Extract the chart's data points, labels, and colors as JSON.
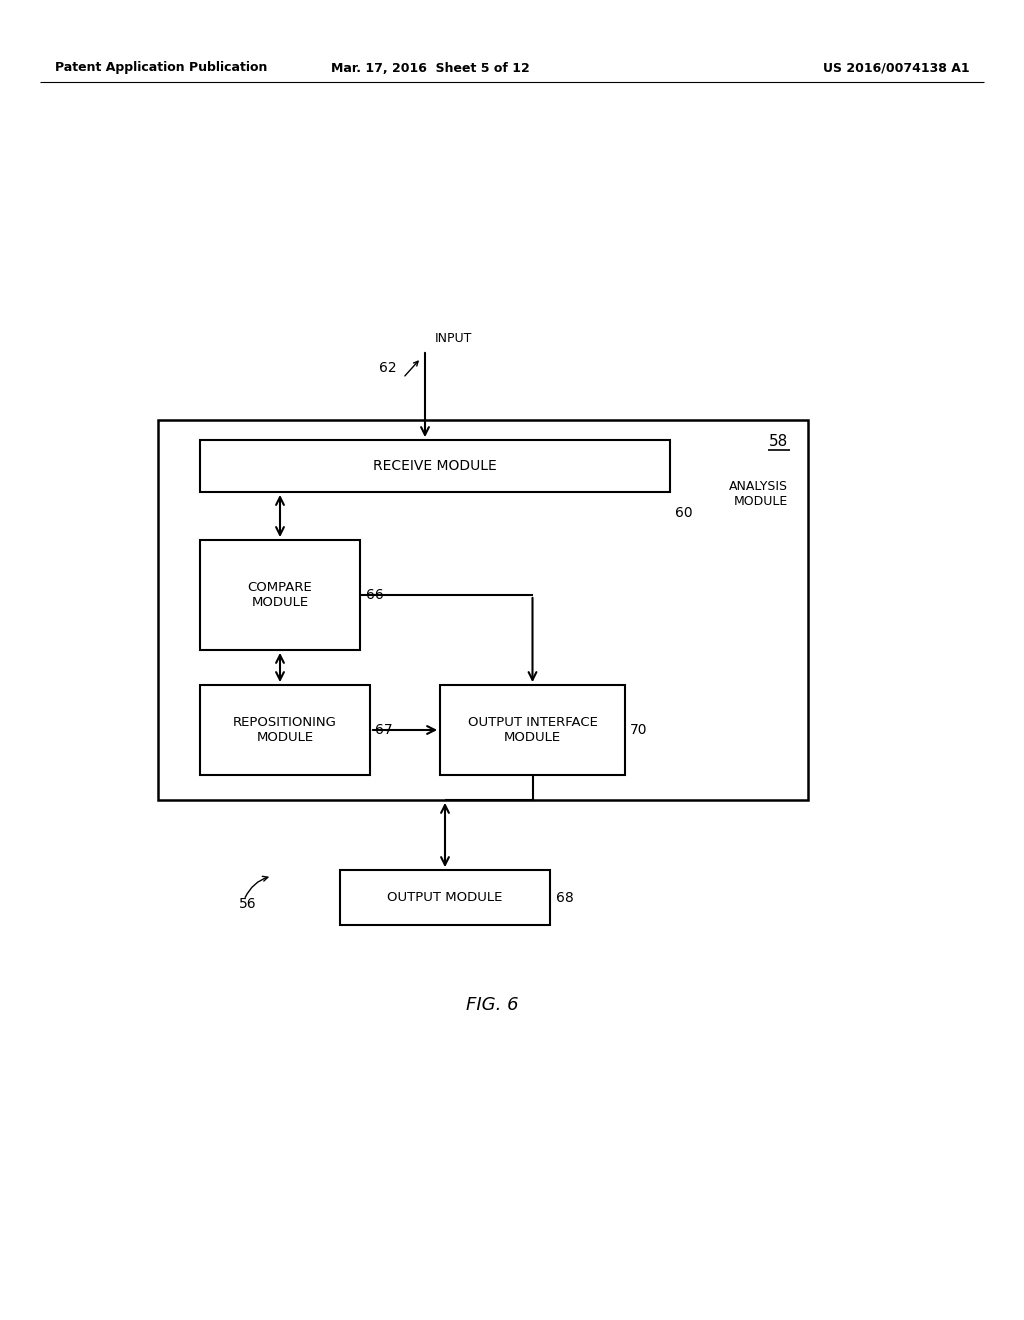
{
  "bg_color": "#ffffff",
  "header_left": "Patent Application Publication",
  "header_mid": "Mar. 17, 2016  Sheet 5 of 12",
  "header_right": "US 2016/0074138 A1",
  "fig_label": "FIG. 6",
  "outer_box_label": "58",
  "outer_box_sublabel": "ANALYSIS\nMODULE",
  "receive_module_label": "RECEIVE MODULE",
  "receive_module_num": "60",
  "compare_module_label": "COMPARE\nMODULE",
  "compare_module_num": "66",
  "repositioning_module_label": "REPOSITIONING\nMODULE",
  "repositioning_module_num": "67",
  "output_interface_label": "OUTPUT INTERFACE\nMODULE",
  "output_interface_num": "70",
  "output_module_label": "OUTPUT MODULE",
  "output_module_num": "68",
  "input_label": "INPUT",
  "input_num": "62",
  "system_num": "56"
}
